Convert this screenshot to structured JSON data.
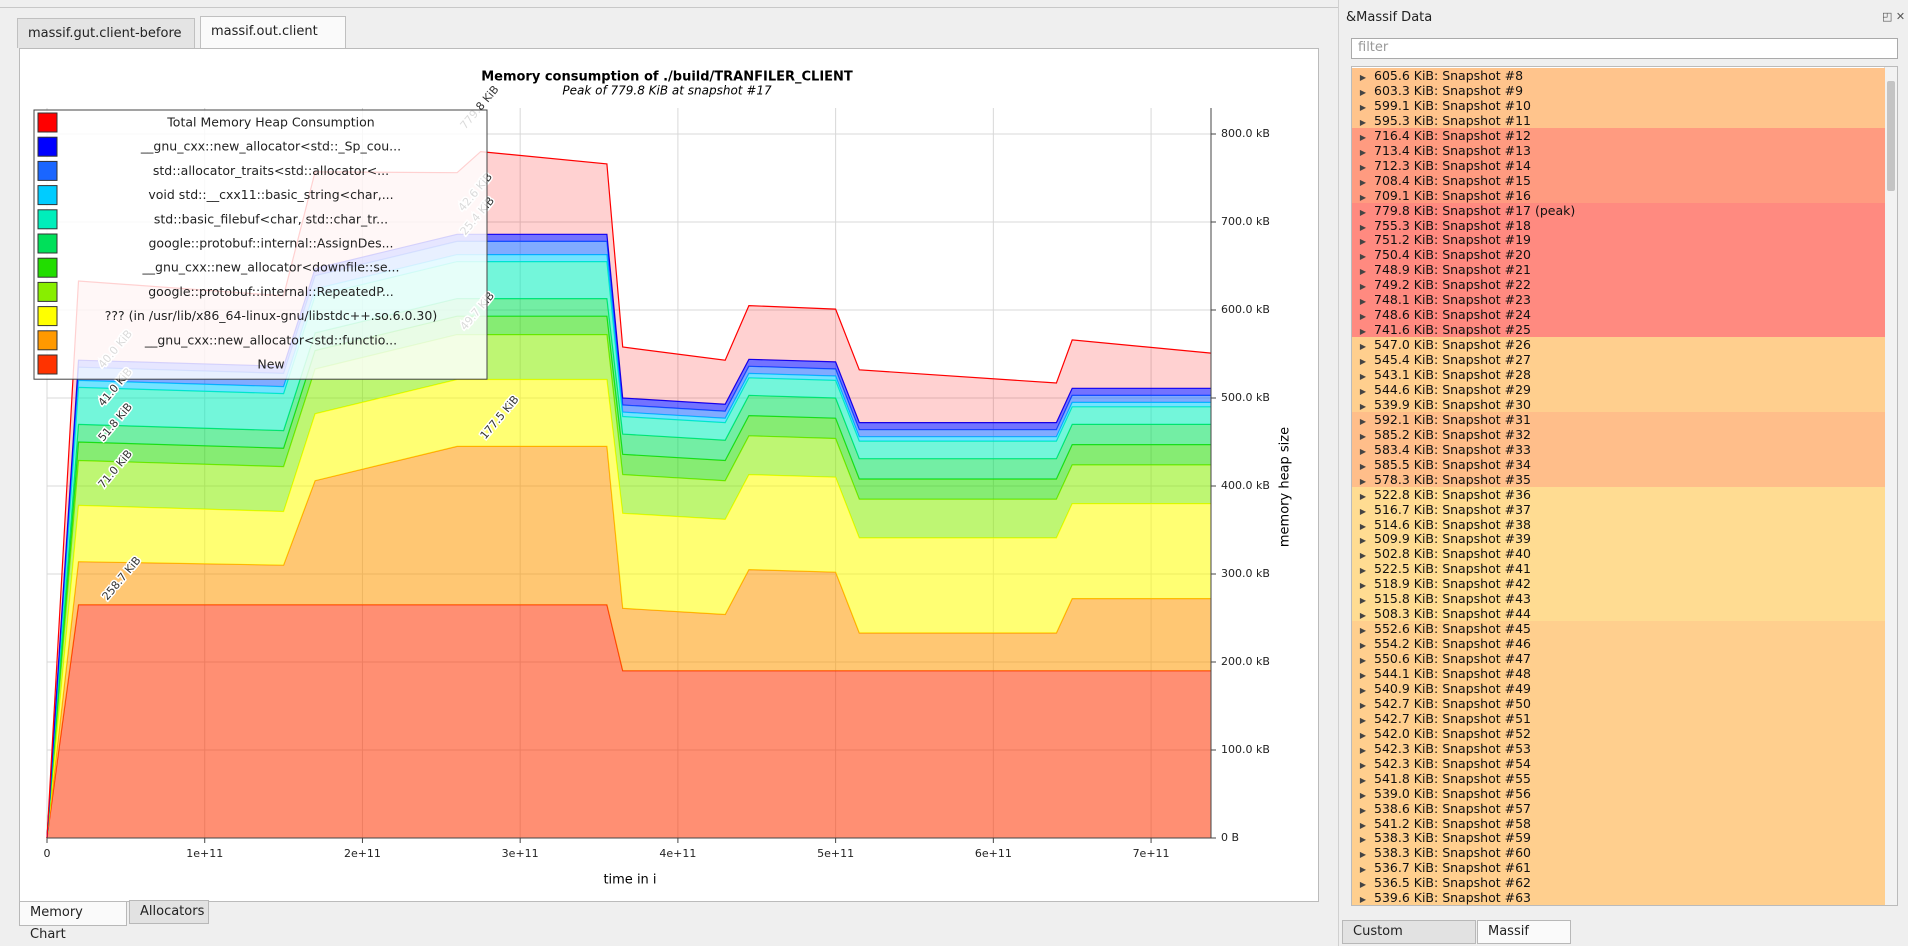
{
  "tabs": [
    "massif.gut.client-before",
    "massif.out.client"
  ],
  "chart_data": {
    "type": "area",
    "stacked": true,
    "title": "Memory consumption of ./build/TRANFILER_CLIENT",
    "subtitle": "Peak of 779.8 KiB at snapshot #17",
    "x_label": "time in i",
    "y_label": "memory heap size",
    "grid": true,
    "x": [
      0,
      20000000000,
      150000000000,
      170000000000,
      260000000000,
      275000000000,
      355000000000,
      365000000000,
      430000000000,
      445000000000,
      500000000000,
      515000000000,
      640000000000,
      650000000000,
      738000000000
    ],
    "xlim": [
      0,
      738000000000
    ],
    "xticks": [
      0,
      {
        "value": 100000000000,
        "label": "1e+11"
      },
      {
        "value": 200000000000,
        "label": "2e+11"
      },
      {
        "value": 300000000000,
        "label": "3e+11"
      },
      {
        "value": 400000000000,
        "label": "4e+11"
      },
      {
        "value": 500000000000,
        "label": "5e+11"
      },
      {
        "value": 600000000000,
        "label": "6e+11"
      },
      {
        "value": 700000000000,
        "label": "7e+11"
      }
    ],
    "ylim": [
      0,
      800
    ],
    "yticks": [
      {
        "value": 0,
        "label": "0 B"
      },
      {
        "value": 100,
        "label": "100.0 kB"
      },
      {
        "value": 200,
        "label": "200.0 kB"
      },
      {
        "value": 300,
        "label": "300.0 kB"
      },
      {
        "value": 400,
        "label": "400.0 kB"
      },
      {
        "value": 500,
        "label": "500.0 kB"
      },
      {
        "value": 600,
        "label": "600.0 kB"
      },
      {
        "value": 700,
        "label": "700.0 kB"
      },
      {
        "value": 800,
        "label": "800.0 kB"
      }
    ],
    "series": [
      {
        "name": "Total Memory Heap Consumption",
        "color": "#ff0000",
        "values": [
          0,
          90,
          80,
          110,
          70,
          94,
          80,
          58,
          50,
          61,
          60,
          60,
          45,
          55,
          40
        ]
      },
      {
        "name": "__gnu_cxx::new_allocator<std::_Sp_cou...",
        "color": "#0000ff",
        "values": [
          0,
          8,
          8,
          8,
          8,
          8,
          8,
          8,
          8,
          8,
          8,
          8,
          8,
          8,
          8
        ]
      },
      {
        "name": "std::allocator_traits<std::allocator<...",
        "color": "#1a66ff",
        "values": [
          0,
          15,
          15,
          15,
          15,
          15,
          15,
          8,
          8,
          8,
          8,
          8,
          8,
          8,
          8
        ]
      },
      {
        "name": "void std::__cxx11::basic_string<char,...",
        "color": "#00ccff",
        "values": [
          0,
          8,
          8,
          8,
          8,
          8,
          8,
          5,
          5,
          5,
          5,
          5,
          5,
          5,
          5
        ]
      },
      {
        "name": "std::basic_filebuf<char, std::char_tr...",
        "color": "#00eebb",
        "values": [
          0,
          42,
          42,
          42,
          42,
          42,
          42,
          20,
          20,
          20,
          20,
          20,
          20,
          20,
          20
        ]
      },
      {
        "name": "google::protobuf::internal::AssignDes...",
        "color": "#00e05a",
        "values": [
          0,
          20,
          20,
          20,
          20,
          20,
          20,
          23,
          23,
          23,
          23,
          23,
          23,
          23,
          23
        ]
      },
      {
        "name": "__gnu_cxx::new_allocator<downfile::se...",
        "color": "#22dd00",
        "values": [
          0,
          21,
          21,
          21,
          21,
          21,
          21,
          23,
          23,
          23,
          23,
          23,
          23,
          23,
          23
        ]
      },
      {
        "name": "google::protobuf::internal::RepeatedP...",
        "color": "#88ee00",
        "values": [
          0,
          51,
          51,
          51,
          51,
          51,
          51,
          44,
          44,
          44,
          44,
          44,
          44,
          44,
          44
        ]
      },
      {
        "name": "??? (in /usr/lib/x86_64-linux-gnu/libstdc++.so.6.0.30)",
        "color": "#ffff00",
        "values": [
          0,
          64,
          61,
          76,
          76,
          76,
          76,
          108,
          108,
          108,
          108,
          108,
          108,
          108,
          108
        ]
      },
      {
        "name": "__gnu_cxx::new_allocator<std::functio...",
        "color": "#ff9900",
        "values": [
          0,
          49,
          45,
          141,
          180,
          180,
          180,
          71,
          64,
          115,
          112,
          43,
          43,
          82,
          82
        ]
      },
      {
        "name": "New",
        "color": "#ff3300",
        "values": [
          0,
          265,
          265,
          265,
          265,
          265,
          265,
          190,
          190,
          190,
          190,
          190,
          190,
          190,
          190
        ]
      }
    ],
    "annotations": [
      "258.7 KiB",
      "71.0 KiB",
      "51.8 KiB",
      "41.0 KiB",
      "40.0 KiB",
      "177.5 KiB",
      "779.8 KiB",
      "42.6 KiB",
      "25.4 KiB",
      "49.7 KiB"
    ]
  },
  "bottom_tabs": [
    "Memory Chart",
    "Allocators"
  ],
  "panel": {
    "title": "&Massif Data",
    "filter_placeholder": "filter",
    "rows": [
      {
        "text": "605.6 KiB: Snapshot #8",
        "color": "#ffc48c"
      },
      {
        "text": "603.3 KiB: Snapshot #9",
        "color": "#ffc48c"
      },
      {
        "text": "599.1 KiB: Snapshot #10",
        "color": "#ffc48c"
      },
      {
        "text": "595.3 KiB: Snapshot #11",
        "color": "#ffc48c"
      },
      {
        "text": "716.4 KiB: Snapshot #12",
        "color": "#ff9b80"
      },
      {
        "text": "713.4 KiB: Snapshot #13",
        "color": "#ff9b80"
      },
      {
        "text": "712.3 KiB: Snapshot #14",
        "color": "#ff9b80"
      },
      {
        "text": "708.4 KiB: Snapshot #15",
        "color": "#ff9b80"
      },
      {
        "text": "709.1 KiB: Snapshot #16",
        "color": "#ff9b80"
      },
      {
        "text": "779.8 KiB: Snapshot #17 (peak)",
        "color": "#ff8a80"
      },
      {
        "text": "755.3 KiB: Snapshot #18",
        "color": "#ff8a80"
      },
      {
        "text": "751.2 KiB: Snapshot #19",
        "color": "#ff8a80"
      },
      {
        "text": "750.4 KiB: Snapshot #20",
        "color": "#ff8a80"
      },
      {
        "text": "748.9 KiB: Snapshot #21",
        "color": "#ff8a80"
      },
      {
        "text": "749.2 KiB: Snapshot #22",
        "color": "#ff8a80"
      },
      {
        "text": "748.1 KiB: Snapshot #23",
        "color": "#ff8a80"
      },
      {
        "text": "748.6 KiB: Snapshot #24",
        "color": "#ff8a80"
      },
      {
        "text": "741.6 KiB: Snapshot #25",
        "color": "#ff8a80"
      },
      {
        "text": "547.0 KiB: Snapshot #26",
        "color": "#ffcf8e"
      },
      {
        "text": "545.4 KiB: Snapshot #27",
        "color": "#ffcf8e"
      },
      {
        "text": "543.1 KiB: Snapshot #28",
        "color": "#ffcf8e"
      },
      {
        "text": "544.6 KiB: Snapshot #29",
        "color": "#ffcf8e"
      },
      {
        "text": "539.9 KiB: Snapshot #30",
        "color": "#ffcf8e"
      },
      {
        "text": "592.1 KiB: Snapshot #31",
        "color": "#ffbe8a"
      },
      {
        "text": "585.2 KiB: Snapshot #32",
        "color": "#ffbe8a"
      },
      {
        "text": "583.4 KiB: Snapshot #33",
        "color": "#ffbe8a"
      },
      {
        "text": "585.5 KiB: Snapshot #34",
        "color": "#ffbe8a"
      },
      {
        "text": "578.3 KiB: Snapshot #35",
        "color": "#ffbe8a"
      },
      {
        "text": "522.8 KiB: Snapshot #36",
        "color": "#ffdc92"
      },
      {
        "text": "516.7 KiB: Snapshot #37",
        "color": "#ffdc92"
      },
      {
        "text": "514.6 KiB: Snapshot #38",
        "color": "#ffdc92"
      },
      {
        "text": "509.9 KiB: Snapshot #39",
        "color": "#ffdc92"
      },
      {
        "text": "502.8 KiB: Snapshot #40",
        "color": "#ffdc92"
      },
      {
        "text": "522.5 KiB: Snapshot #41",
        "color": "#ffdc92"
      },
      {
        "text": "518.9 KiB: Snapshot #42",
        "color": "#ffdc92"
      },
      {
        "text": "515.8 KiB: Snapshot #43",
        "color": "#ffdc92"
      },
      {
        "text": "508.3 KiB: Snapshot #44",
        "color": "#ffdc92"
      },
      {
        "text": "552.6 KiB: Snapshot #45",
        "color": "#ffcf8e"
      },
      {
        "text": "554.2 KiB: Snapshot #46",
        "color": "#ffcf8e"
      },
      {
        "text": "550.6 KiB: Snapshot #47",
        "color": "#ffcf8e"
      },
      {
        "text": "544.1 KiB: Snapshot #48",
        "color": "#ffcf8e"
      },
      {
        "text": "540.9 KiB: Snapshot #49",
        "color": "#ffcf8e"
      },
      {
        "text": "542.7 KiB: Snapshot #50",
        "color": "#ffcf8e"
      },
      {
        "text": "542.7 KiB: Snapshot #51",
        "color": "#ffcf8e"
      },
      {
        "text": "542.0 KiB: Snapshot #52",
        "color": "#ffcf8e"
      },
      {
        "text": "542.3 KiB: Snapshot #53",
        "color": "#ffcf8e"
      },
      {
        "text": "542.3 KiB: Snapshot #54",
        "color": "#ffcf8e"
      },
      {
        "text": "541.8 KiB: Snapshot #55",
        "color": "#ffcf8e"
      },
      {
        "text": "539.0 KiB: Snapshot #56",
        "color": "#ffcf8e"
      },
      {
        "text": "538.6 KiB: Snapshot #57",
        "color": "#ffcf8e"
      },
      {
        "text": "541.2 KiB: Snapshot #58",
        "color": "#ffcf8e"
      },
      {
        "text": "538.3 KiB: Snapshot #59",
        "color": "#ffcf8e"
      },
      {
        "text": "538.3 KiB: Snapshot #60",
        "color": "#ffcf8e"
      },
      {
        "text": "536.7 KiB: Snapshot #61",
        "color": "#ffcf8e"
      },
      {
        "text": "536.5 KiB: Snapshot #62",
        "color": "#ffcf8e"
      },
      {
        "text": "539.6 KiB: Snapshot #63",
        "color": "#ffcf8e"
      }
    ],
    "tabs": [
      "Custom Allocators",
      "Massif Data"
    ]
  }
}
